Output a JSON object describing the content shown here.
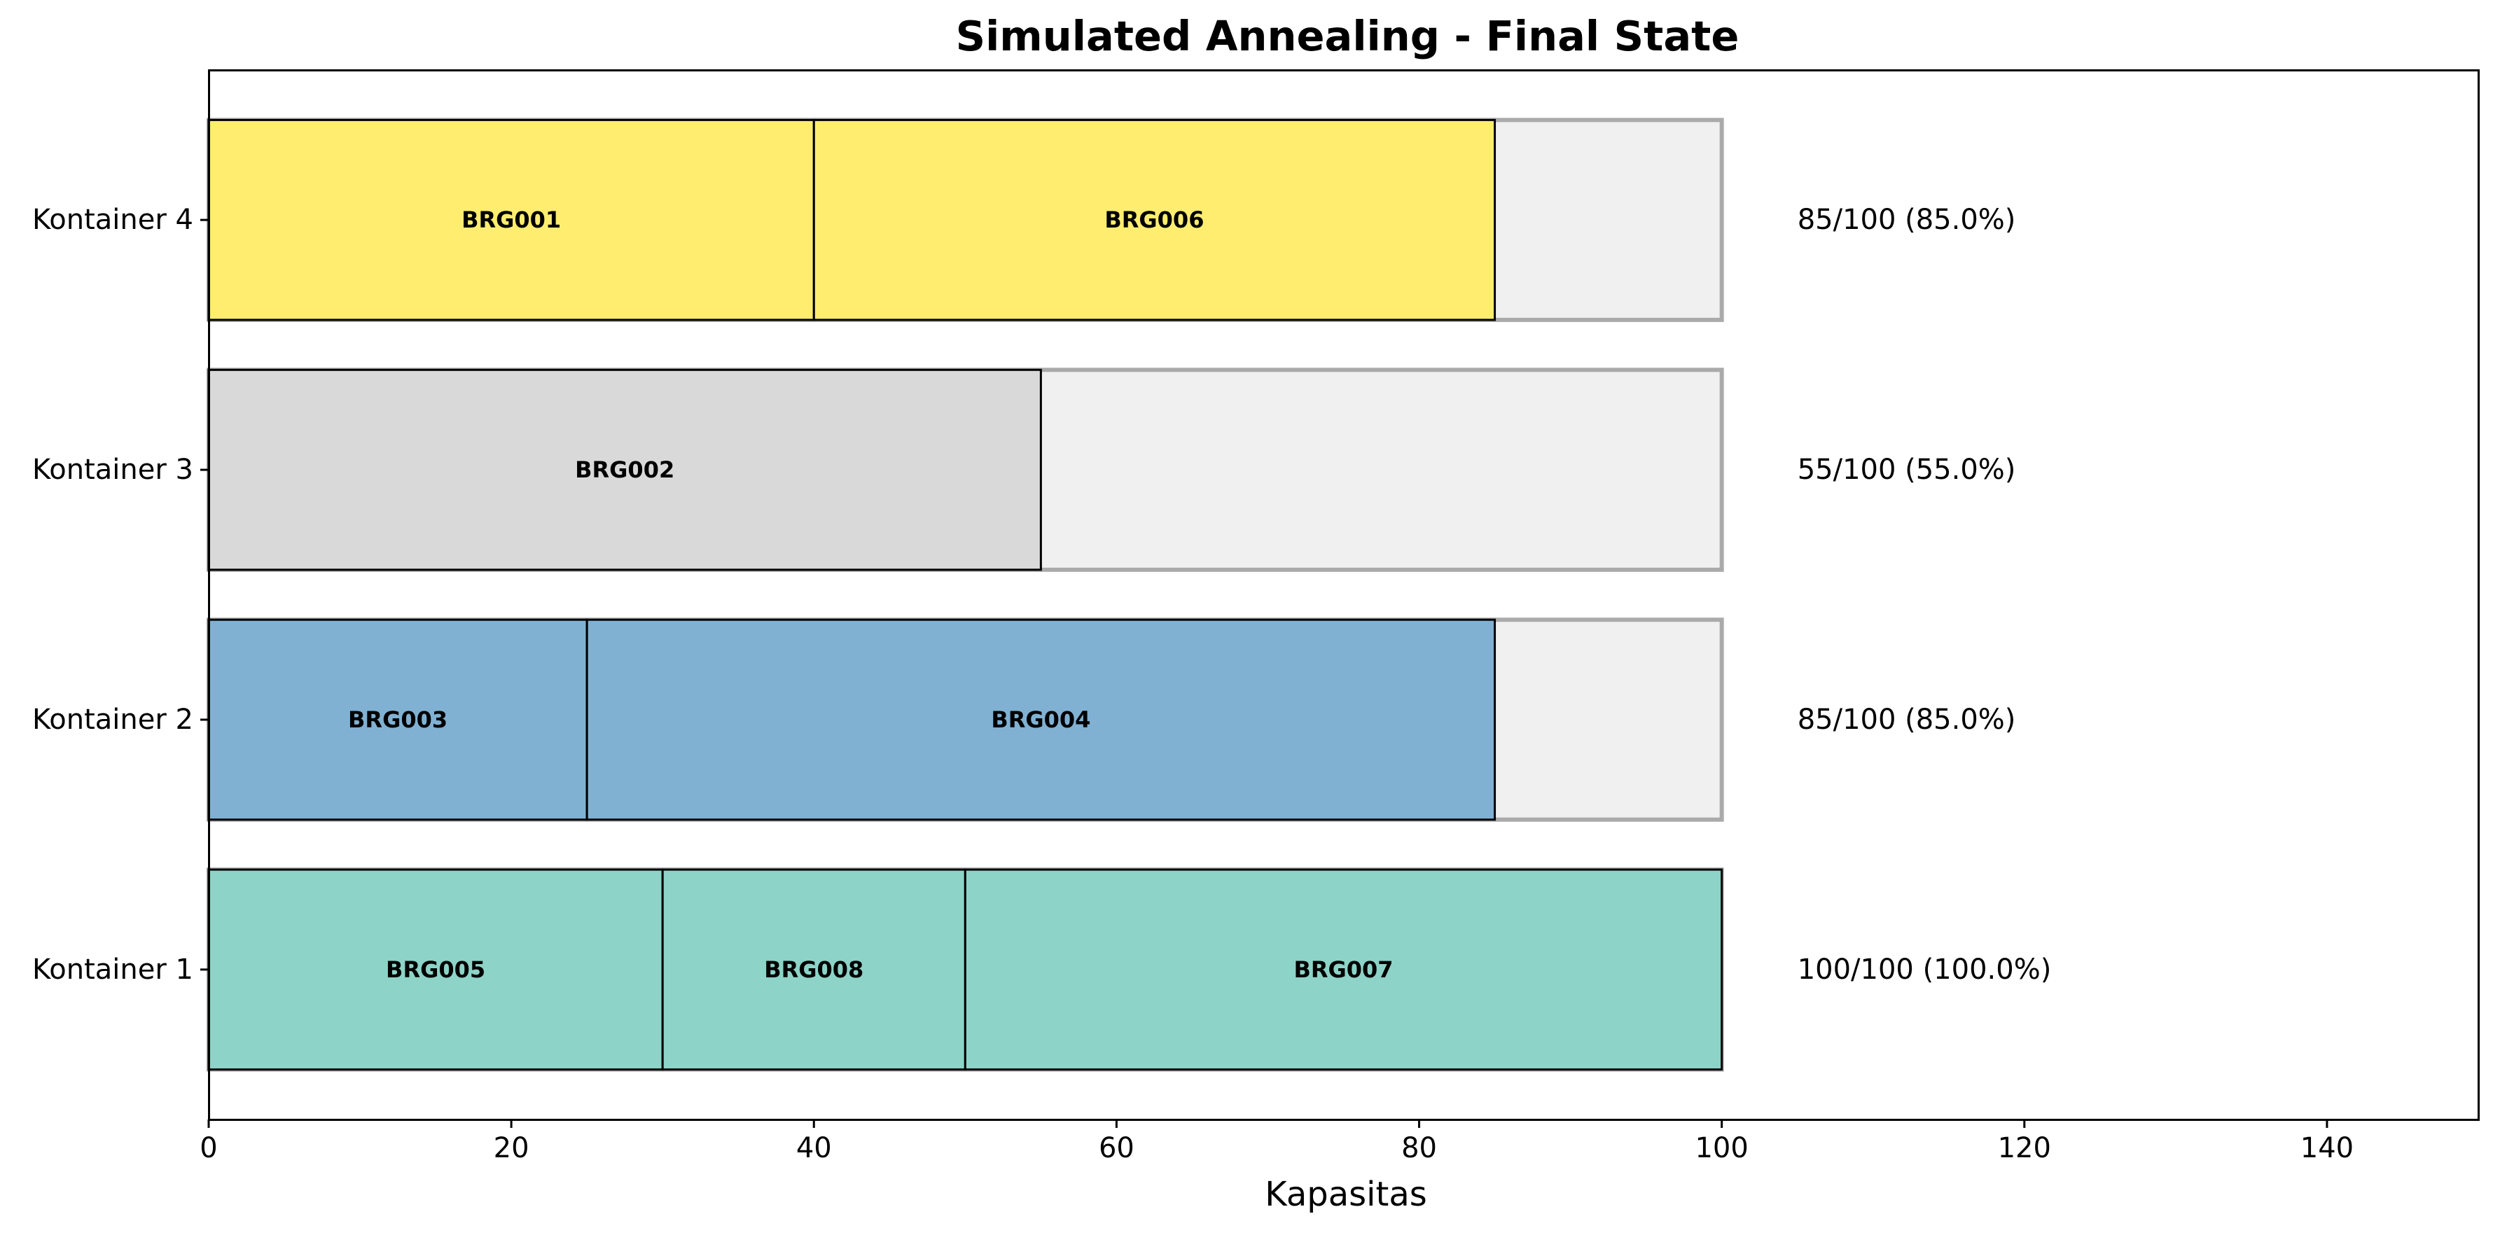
{
  "chart_data": {
    "type": "bar",
    "orientation": "horizontal-stacked",
    "title": "Simulated Annealing - Final State",
    "xlabel": "Kapasitas",
    "ylabel": "",
    "xlim": [
      0,
      150
    ],
    "x_ticks": [
      0,
      20,
      40,
      60,
      80,
      100,
      120,
      140
    ],
    "grid": false,
    "capacity": 100,
    "empty_color": "#f0f0f0",
    "empty_border_color": "#aaaaaa",
    "containers": [
      {
        "label": "Kontainer 1",
        "color": "#8dd3c7",
        "items": [
          {
            "name": "BRG005",
            "value": 30
          },
          {
            "name": "BRG008",
            "value": 20
          },
          {
            "name": "BRG007",
            "value": 50
          }
        ],
        "annotation": "100/100 (100.0%)"
      },
      {
        "label": "Kontainer 2",
        "color": "#80b1d3",
        "items": [
          {
            "name": "BRG003",
            "value": 25
          },
          {
            "name": "BRG004",
            "value": 60
          }
        ],
        "annotation": "85/100 (85.0%)"
      },
      {
        "label": "Kontainer 3",
        "color": "#d9d9d9",
        "items": [
          {
            "name": "BRG002",
            "value": 55
          }
        ],
        "annotation": "55/100 (55.0%)"
      },
      {
        "label": "Kontainer 4",
        "color": "#ffed6f",
        "items": [
          {
            "name": "BRG001",
            "value": 40
          },
          {
            "name": "BRG006",
            "value": 45
          }
        ],
        "annotation": "85/100 (85.0%)"
      }
    ]
  }
}
